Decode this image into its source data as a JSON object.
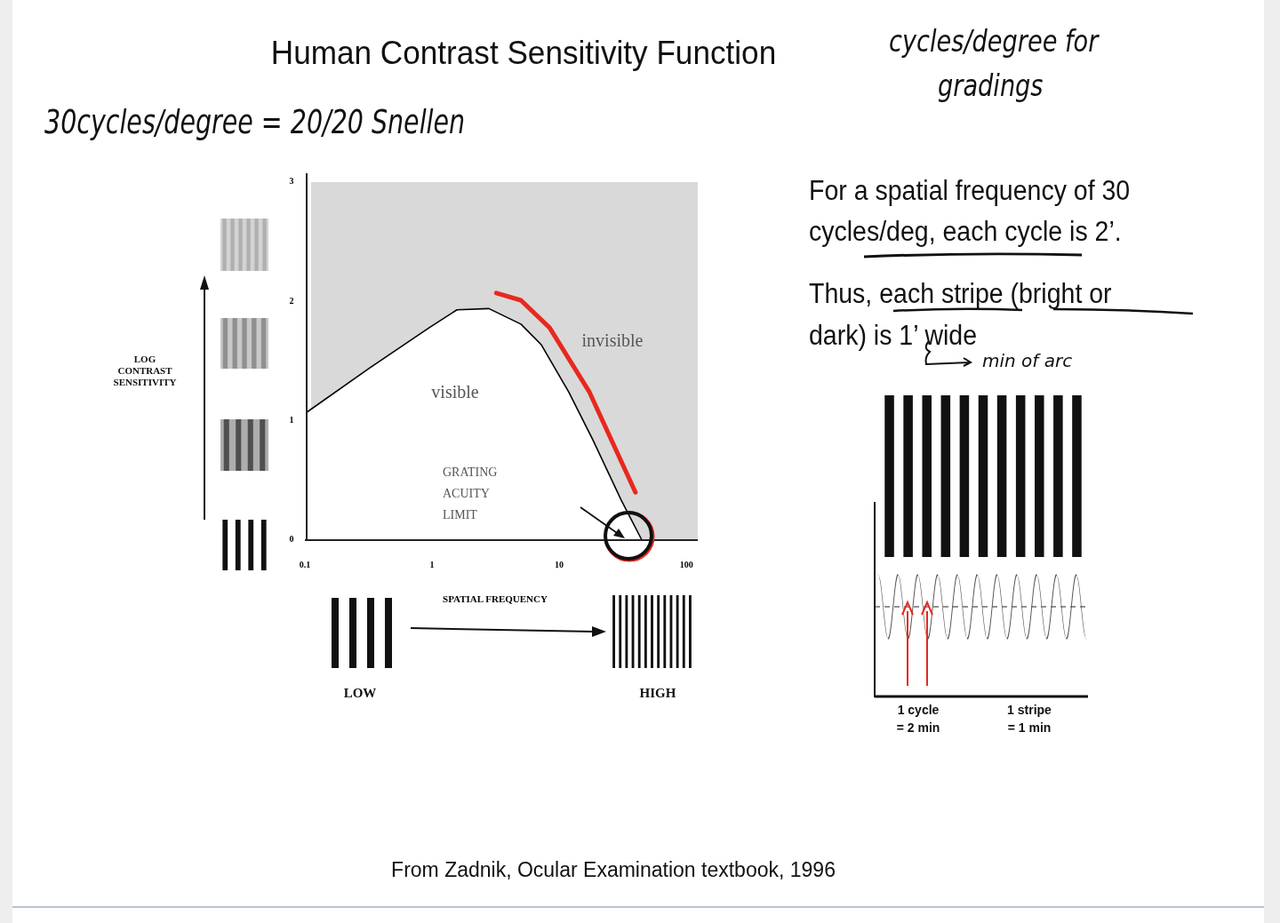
{
  "chart_data": {
    "type": "line",
    "title": "Human Contrast Sensitivity Function",
    "xlabel": "SPATIAL FREQUENCY",
    "log": "x",
    "xlim": [
      0.1,
      123
    ],
    "ylim": [
      0,
      3
    ],
    "xticks": [
      0.1,
      1,
      10,
      100
    ],
    "yticks": [
      0,
      1,
      2,
      3
    ],
    "grid": false,
    "series": [
      {
        "type": "area",
        "color": "#ffffff",
        "x": [
          0.103,
          0.32,
          0.95,
          1.57,
          2.8,
          5.0,
          7.2,
          11.9,
          18.4,
          30.9,
          44.7
        ],
        "values": [
          1.07,
          1.44,
          1.78,
          1.93,
          1.94,
          1.81,
          1.64,
          1.24,
          0.84,
          0.33,
          0
        ]
      },
      {
        "color": "#e8281e",
        "x": [
          3.2,
          5.0,
          8.4,
          17.3,
          39.8
        ],
        "values": [
          2.07,
          2.01,
          1.78,
          1.24,
          0.4
        ]
      }
    ],
    "annotations": [
      "30cycles/degree = 20/20 Snellen",
      "cycles/degree for",
      "gradings",
      "For a spatial frequency of 30",
      "cycles/deg, each cycle is 2’.",
      "Thus, each stripe (bright or",
      "dark) is 1’ wide",
      "min of arc",
      "visible",
      "invisible",
      "GRATING\nACUITY\nLIMIT",
      "LOW",
      "HIGH",
      "1 cycle\n= 2 min",
      "1 stripe\n= 1 min",
      "From Zadnik, Ocular Examination textbook, 1996",
      "LOG\nCONTRAST\nSENSITIVITY"
    ]
  }
}
